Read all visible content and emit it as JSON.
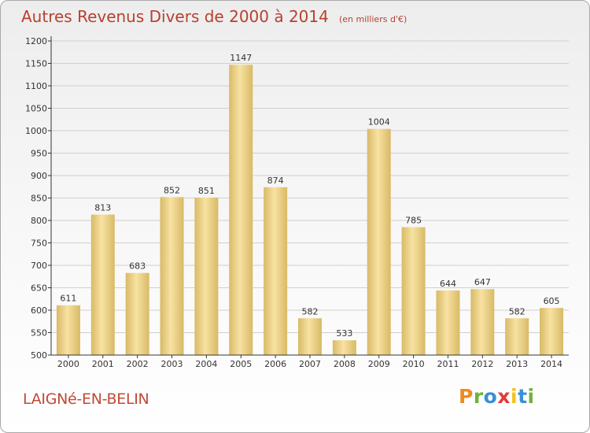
{
  "header": {
    "title": "Autres Revenus Divers de 2000 à 2014",
    "subtitle": "(en milliers d'€)"
  },
  "footer": {
    "commune": "LAIGNé-EN-BELIN",
    "logo_text": "Proxiti",
    "logo_colors": [
      "#f08a1e",
      "#6fb23a",
      "#3a8fd6",
      "#e23b3b",
      "#f3c21a",
      "#3a8fd6",
      "#6fb23a"
    ]
  },
  "colors": {
    "bar_light": "#f8e2a2",
    "bar_dark": "#d8ba66",
    "axis": "#333333",
    "grid": "#cfcfcf",
    "title": "#b8402f"
  },
  "chart_data": {
    "type": "bar",
    "title": "Autres Revenus Divers de 2000 à 2014",
    "subtitle": "(en milliers d'€)",
    "xlabel": "",
    "ylabel": "",
    "categories": [
      "2000",
      "2001",
      "2002",
      "2003",
      "2004",
      "2005",
      "2006",
      "2007",
      "2008",
      "2009",
      "2010",
      "2011",
      "2012",
      "2013",
      "2014"
    ],
    "values": [
      611,
      813,
      683,
      852,
      851,
      1147,
      874,
      582,
      533,
      1004,
      785,
      644,
      647,
      582,
      605
    ],
    "ylim": [
      500,
      1200
    ],
    "yticks": [
      500,
      550,
      600,
      650,
      700,
      750,
      800,
      850,
      900,
      950,
      1000,
      1050,
      1100,
      1150,
      1200
    ],
    "grid": true,
    "legend": "none"
  }
}
